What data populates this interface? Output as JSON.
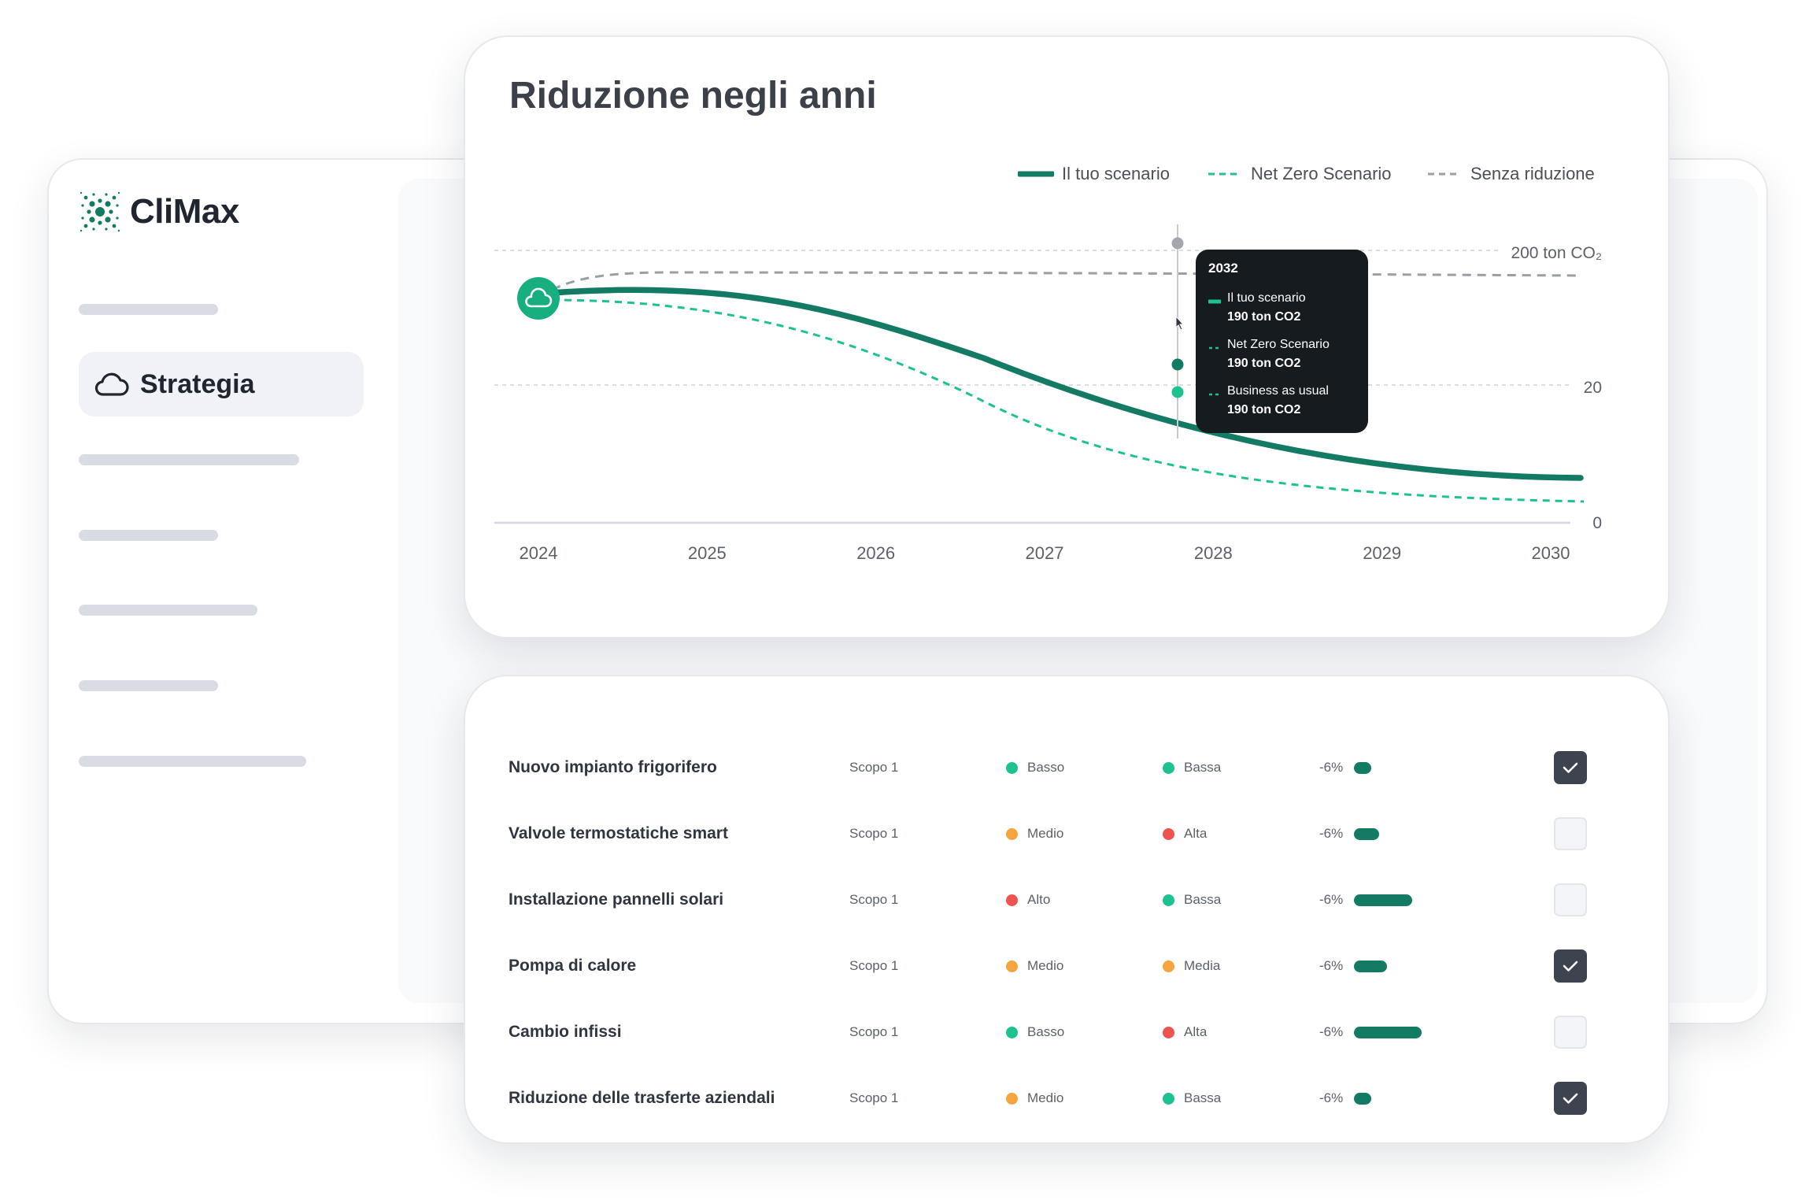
{
  "app": {
    "name": "CliMax",
    "active_nav": "Strategia"
  },
  "chart": {
    "title": "Riduzione negli anni",
    "legend": [
      {
        "label": "Il tuo scenario",
        "style": "solid",
        "color": "#137a63"
      },
      {
        "label": "Net Zero Scenario",
        "style": "dashed",
        "color": "#1cc28f"
      },
      {
        "label": "Senza riduzione",
        "style": "dashed",
        "color": "#9a9ea6"
      }
    ],
    "y_tick_labels": [
      "200 ton CO₂",
      "20",
      "0"
    ],
    "x_tick_labels": [
      "2024",
      "2025",
      "2026",
      "2027",
      "2028",
      "2029",
      "2030"
    ],
    "tooltip": {
      "year": "2032",
      "items": [
        {
          "name": "Il tuo scenario",
          "value": "190 ton CO2",
          "color": "#1cc28f"
        },
        {
          "name": "Net Zero Scenario",
          "value": "190 ton CO2",
          "color": "#1cc28f"
        },
        {
          "name": "Business as usual",
          "value": "190 ton CO2",
          "color": "#1cc28f"
        }
      ]
    }
  },
  "chart_data": {
    "type": "line",
    "x": [
      2024,
      2025,
      2026,
      2027,
      2028,
      2029,
      2030
    ],
    "y_ticks": [
      0,
      20,
      200
    ],
    "series": [
      {
        "name": "Il tuo scenario",
        "values": [
          180,
          172,
          120,
          60,
          25,
          10,
          6
        ]
      },
      {
        "name": "Net Zero Scenario",
        "values": [
          180,
          150,
          80,
          25,
          8,
          3,
          2
        ]
      },
      {
        "name": "Senza riduzione",
        "values": [
          180,
          190,
          192,
          192,
          191,
          190,
          190
        ]
      }
    ],
    "grid": true,
    "legend_position": "top-right"
  },
  "colors": {
    "accent": "#137a63",
    "accent_light": "#1cc28f",
    "low": "#1cc28f",
    "medium": "#f5a53e",
    "high": "#ef5350"
  },
  "table": {
    "rows": [
      {
        "name": "Nuovo impianto frigorifero",
        "scope": "Scopo 1",
        "cost": "Basso",
        "cost_color": "#1cc28f",
        "difficulty": "Bassa",
        "difficulty_color": "#1cc28f",
        "percent": "-6%",
        "impact": 0.18,
        "checked": true
      },
      {
        "name": "Valvole termostatiche smart",
        "scope": "Scopo 1",
        "cost": "Medio",
        "cost_color": "#f5a53e",
        "difficulty": "Alta",
        "difficulty_color": "#ef5350",
        "percent": "-6%",
        "impact": 0.27,
        "checked": false
      },
      {
        "name": "Installazione pannelli solari",
        "scope": "Scopo 1",
        "cost": "Alto",
        "cost_color": "#ef5350",
        "difficulty": "Bassa",
        "difficulty_color": "#1cc28f",
        "percent": "-6%",
        "impact": 0.62,
        "checked": false
      },
      {
        "name": "Pompa di calore",
        "scope": "Scopo 1",
        "cost": "Medio",
        "cost_color": "#f5a53e",
        "difficulty": "Media",
        "difficulty_color": "#f5a53e",
        "percent": "-6%",
        "impact": 0.35,
        "checked": true
      },
      {
        "name": "Cambio infissi",
        "scope": "Scopo 1",
        "cost": "Basso",
        "cost_color": "#1cc28f",
        "difficulty": "Alta",
        "difficulty_color": "#ef5350",
        "percent": "-6%",
        "impact": 0.72,
        "checked": false
      },
      {
        "name": "Riduzione delle trasferte aziendali",
        "scope": "Scopo 1",
        "cost": "Medio",
        "cost_color": "#f5a53e",
        "difficulty": "Bassa",
        "difficulty_color": "#1cc28f",
        "percent": "-6%",
        "impact": 0.18,
        "checked": true
      }
    ]
  }
}
